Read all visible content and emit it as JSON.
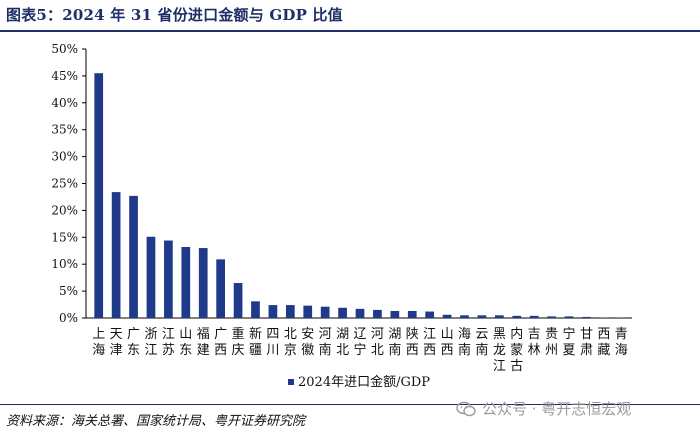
{
  "header": {
    "title": "图表5：2024 年 31 省份进口金额与 GDP 比值"
  },
  "footer": {
    "source": "资料来源：海关总署、国家统计局、粤开证券研究院"
  },
  "watermark": {
    "text": "公众号 · 粤开志恒宏观",
    "icon": "wechat-icon"
  },
  "colors": {
    "bar": "#1f3a8a",
    "title": "#1d2f66",
    "axis": "#000000"
  },
  "chart_data": {
    "type": "bar",
    "title": "图表5：2024 年 31 省份进口金额与 GDP 比值",
    "xlabel": "",
    "ylabel": "",
    "ylim": [
      0,
      50
    ],
    "y_tick_labels": [
      "0%",
      "5%",
      "10%",
      "15%",
      "20%",
      "25%",
      "30%",
      "35%",
      "40%",
      "45%",
      "50%"
    ],
    "grid": false,
    "legend_position": "bottom-center",
    "categories": [
      "上海",
      "天津",
      "广东",
      "浙江",
      "江苏",
      "山东",
      "福建",
      "广西",
      "重庆",
      "新疆",
      "四川",
      "北京",
      "安徽",
      "河南",
      "湖北",
      "辽宁",
      "河北",
      "湖南",
      "陕西",
      "江西",
      "山西",
      "海南",
      "云南",
      "黑龙江",
      "内蒙古",
      "吉林",
      "贵州",
      "宁夏",
      "甘肃",
      "西藏",
      "青海"
    ],
    "series": [
      {
        "name": "2024年进口金额/GDP",
        "values": [
          45.5,
          23.4,
          22.7,
          15.1,
          14.4,
          13.2,
          13.0,
          10.9,
          6.5,
          3.1,
          2.4,
          2.4,
          2.3,
          2.1,
          1.9,
          1.7,
          1.5,
          1.3,
          1.3,
          1.2,
          0.6,
          0.5,
          0.5,
          0.5,
          0.4,
          0.4,
          0.3,
          0.3,
          0.2,
          0.1,
          0.1
        ]
      }
    ]
  }
}
